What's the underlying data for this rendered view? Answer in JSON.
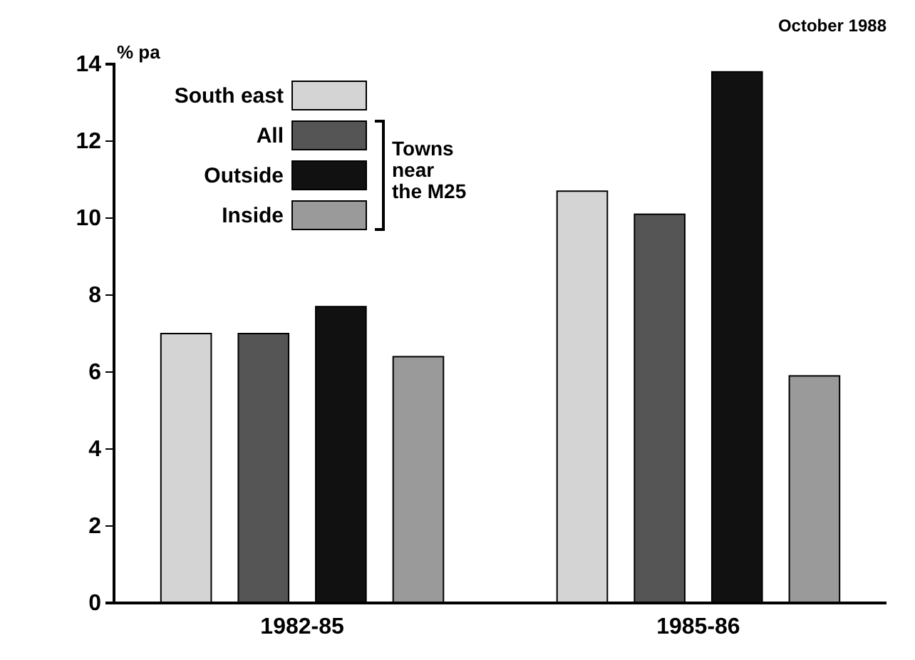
{
  "chart_data": {
    "type": "bar",
    "ylabel": "% pa",
    "categories": [
      "1982-85",
      "1985-86"
    ],
    "series": [
      {
        "name": "South east",
        "color": "#d4d4d4",
        "values": [
          7.0,
          10.7
        ]
      },
      {
        "name": "All",
        "color": "#555555",
        "values": [
          7.0,
          10.1
        ]
      },
      {
        "name": "Outside",
        "color": "#111111",
        "values": [
          7.7,
          13.8
        ]
      },
      {
        "name": "Inside",
        "color": "#9a9a9a",
        "values": [
          6.4,
          5.9
        ]
      }
    ],
    "ylim": [
      0,
      14
    ],
    "yticks": [
      0,
      2,
      4,
      6,
      8,
      10,
      12,
      14
    ],
    "grid": false,
    "legend": "top left",
    "annotations": [
      "Towns near the M25",
      "October 1988"
    ]
  }
}
